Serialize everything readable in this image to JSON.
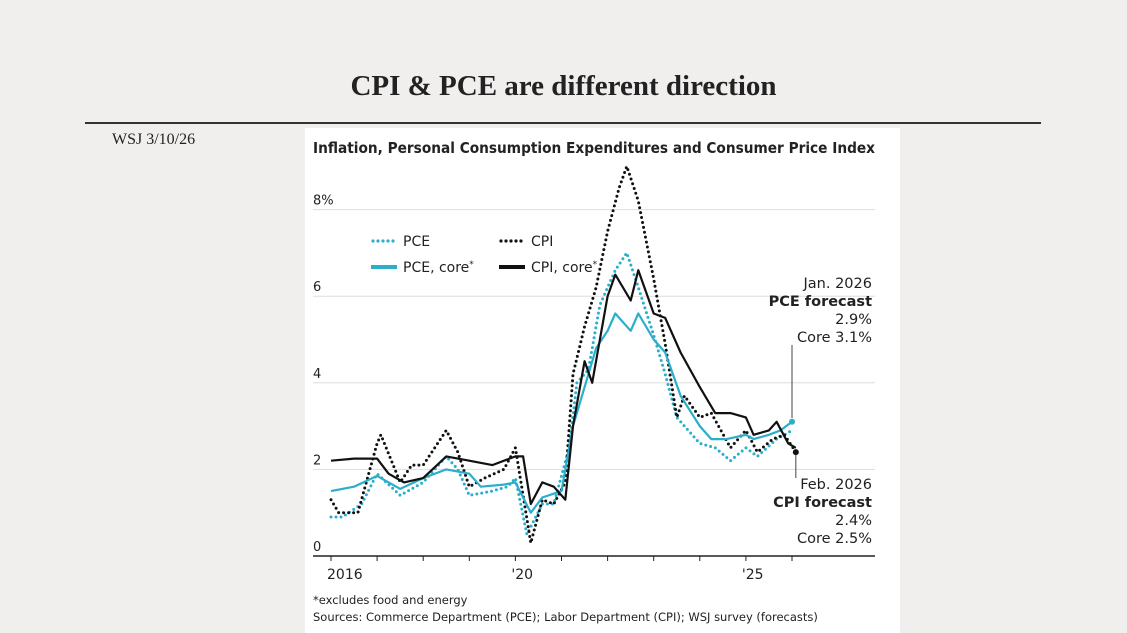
{
  "slide": {
    "title": "CPI & PCE are different direction",
    "source_note": "WSJ  3/10/26"
  },
  "colors": {
    "pce": "#2aaecb",
    "cpi": "#111111",
    "grid": "#dddddd"
  },
  "chart_data": {
    "type": "line",
    "title": "Inflation, Personal Consumption Expenditures and Consumer Price Index",
    "ylim": [
      0,
      9
    ],
    "yticks": [
      0,
      2,
      4,
      6,
      8
    ],
    "ytick_labels": [
      "0",
      "2",
      "4",
      "6",
      "8%"
    ],
    "xlim": [
      "2016-01",
      "2026-03"
    ],
    "xtick_labels": [
      {
        "date": "2016-01",
        "label": "2016"
      },
      {
        "date": "2020-01",
        "label": "'20"
      },
      {
        "date": "2025-01",
        "label": "'25"
      }
    ],
    "grid": true,
    "legend_placement": "top-left",
    "series": [
      {
        "name": "PCE",
        "style": "dotted",
        "color": "#2aaecb",
        "points": [
          [
            "2016-01",
            0.9
          ],
          [
            "2016-04",
            0.9
          ],
          [
            "2016-09",
            1.2
          ],
          [
            "2017-01",
            1.9
          ],
          [
            "2017-07",
            1.4
          ],
          [
            "2018-01",
            1.7
          ],
          [
            "2018-07",
            2.3
          ],
          [
            "2018-10",
            2.0
          ],
          [
            "2019-01",
            1.4
          ],
          [
            "2019-07",
            1.5
          ],
          [
            "2019-11",
            1.6
          ],
          [
            "2020-01",
            1.8
          ],
          [
            "2020-04",
            0.5
          ],
          [
            "2020-08",
            1.2
          ],
          [
            "2020-11",
            1.2
          ],
          [
            "2021-03",
            2.5
          ],
          [
            "2021-05",
            4.0
          ],
          [
            "2021-08",
            4.3
          ],
          [
            "2021-11",
            5.8
          ],
          [
            "2022-03",
            6.6
          ],
          [
            "2022-06",
            7.0
          ],
          [
            "2022-09",
            6.2
          ],
          [
            "2023-01",
            5.1
          ],
          [
            "2023-04",
            4.2
          ],
          [
            "2023-07",
            3.2
          ],
          [
            "2024-01",
            2.6
          ],
          [
            "2024-05",
            2.5
          ],
          [
            "2024-09",
            2.2
          ],
          [
            "2025-01",
            2.5
          ],
          [
            "2025-04",
            2.3
          ],
          [
            "2025-09",
            2.7
          ],
          [
            "2026-01",
            2.9
          ]
        ]
      },
      {
        "name": "CPI",
        "style": "dotted",
        "color": "#111111",
        "points": [
          [
            "2016-01",
            1.3
          ],
          [
            "2016-03",
            1.0
          ],
          [
            "2016-08",
            1.0
          ],
          [
            "2017-01",
            2.6
          ],
          [
            "2017-02",
            2.8
          ],
          [
            "2017-07",
            1.7
          ],
          [
            "2017-10",
            2.1
          ],
          [
            "2018-01",
            2.1
          ],
          [
            "2018-07",
            2.9
          ],
          [
            "2018-10",
            2.4
          ],
          [
            "2019-01",
            1.6
          ],
          [
            "2019-05",
            1.8
          ],
          [
            "2019-10",
            2.0
          ],
          [
            "2020-01",
            2.5
          ],
          [
            "2020-05",
            0.3
          ],
          [
            "2020-08",
            1.3
          ],
          [
            "2020-11",
            1.2
          ],
          [
            "2021-02",
            1.7
          ],
          [
            "2021-04",
            4.2
          ],
          [
            "2021-07",
            5.3
          ],
          [
            "2021-10",
            6.2
          ],
          [
            "2022-01",
            7.5
          ],
          [
            "2022-04",
            8.5
          ],
          [
            "2022-06",
            9.0
          ],
          [
            "2022-09",
            8.2
          ],
          [
            "2023-01",
            6.4
          ],
          [
            "2023-04",
            4.9
          ],
          [
            "2023-07",
            3.2
          ],
          [
            "2023-09",
            3.7
          ],
          [
            "2024-01",
            3.2
          ],
          [
            "2024-04",
            3.3
          ],
          [
            "2024-09",
            2.5
          ],
          [
            "2025-01",
            2.9
          ],
          [
            "2025-04",
            2.4
          ],
          [
            "2025-08",
            2.7
          ],
          [
            "2025-11",
            2.8
          ],
          [
            "2026-02",
            2.4
          ]
        ]
      },
      {
        "name": "PCE, core*",
        "style": "solid",
        "color": "#2aaecb",
        "points": [
          [
            "2016-01",
            1.5
          ],
          [
            "2016-07",
            1.6
          ],
          [
            "2017-01",
            1.85
          ],
          [
            "2017-07",
            1.55
          ],
          [
            "2018-01",
            1.8
          ],
          [
            "2018-07",
            2.0
          ],
          [
            "2019-01",
            1.9
          ],
          [
            "2019-04",
            1.6
          ],
          [
            "2019-10",
            1.65
          ],
          [
            "2020-01",
            1.7
          ],
          [
            "2020-05",
            1.0
          ],
          [
            "2020-08",
            1.35
          ],
          [
            "2021-01",
            1.5
          ],
          [
            "2021-04",
            3.0
          ],
          [
            "2021-07",
            3.9
          ],
          [
            "2021-10",
            4.8
          ],
          [
            "2022-01",
            5.2
          ],
          [
            "2022-03",
            5.6
          ],
          [
            "2022-07",
            5.2
          ],
          [
            "2022-09",
            5.6
          ],
          [
            "2023-01",
            5.0
          ],
          [
            "2023-04",
            4.7
          ],
          [
            "2023-08",
            3.7
          ],
          [
            "2024-01",
            3.0
          ],
          [
            "2024-04",
            2.7
          ],
          [
            "2024-08",
            2.7
          ],
          [
            "2025-01",
            2.8
          ],
          [
            "2025-03",
            2.7
          ],
          [
            "2025-07",
            2.8
          ],
          [
            "2025-10",
            2.9
          ],
          [
            "2026-01",
            3.1
          ]
        ]
      },
      {
        "name": "CPI, core*",
        "style": "solid",
        "color": "#111111",
        "points": [
          [
            "2016-01",
            2.2
          ],
          [
            "2016-07",
            2.25
          ],
          [
            "2017-01",
            2.25
          ],
          [
            "2017-04",
            1.9
          ],
          [
            "2017-08",
            1.7
          ],
          [
            "2018-01",
            1.8
          ],
          [
            "2018-07",
            2.3
          ],
          [
            "2019-01",
            2.2
          ],
          [
            "2019-07",
            2.1
          ],
          [
            "2020-01",
            2.3
          ],
          [
            "2020-03",
            2.3
          ],
          [
            "2020-05",
            1.2
          ],
          [
            "2020-08",
            1.7
          ],
          [
            "2020-11",
            1.6
          ],
          [
            "2021-02",
            1.3
          ],
          [
            "2021-04",
            3.0
          ],
          [
            "2021-07",
            4.5
          ],
          [
            "2021-09",
            4.0
          ],
          [
            "2022-01",
            6.0
          ],
          [
            "2022-03",
            6.5
          ],
          [
            "2022-07",
            5.9
          ],
          [
            "2022-09",
            6.6
          ],
          [
            "2023-01",
            5.6
          ],
          [
            "2023-04",
            5.5
          ],
          [
            "2023-08",
            4.7
          ],
          [
            "2024-01",
            3.9
          ],
          [
            "2024-05",
            3.3
          ],
          [
            "2024-09",
            3.3
          ],
          [
            "2025-01",
            3.2
          ],
          [
            "2025-03",
            2.8
          ],
          [
            "2025-07",
            2.9
          ],
          [
            "2025-09",
            3.1
          ],
          [
            "2025-12",
            2.6
          ],
          [
            "2026-02",
            2.5
          ]
        ]
      }
    ],
    "annotations": [
      {
        "lines": [
          "Jan. 2026",
          "PCE forecast",
          "2.9%",
          "Core 3.1%"
        ],
        "date": "2026-01",
        "value": 3.1
      },
      {
        "lines": [
          "Feb. 2026",
          "CPI forecast",
          "2.4%",
          "Core 2.5%"
        ],
        "date": "2026-02",
        "value": 2.4
      }
    ],
    "footnote": "*excludes food and energy",
    "sources": "Sources: Commerce Department (PCE); Labor Department (CPI); WSJ survey (forecasts)"
  }
}
